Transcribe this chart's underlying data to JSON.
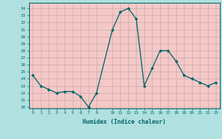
{
  "x": [
    0,
    1,
    2,
    3,
    4,
    5,
    6,
    7,
    8,
    10,
    11,
    12,
    13,
    14,
    15,
    16,
    17,
    18,
    19,
    20,
    21,
    22,
    23
  ],
  "y": [
    24.5,
    23.0,
    22.5,
    22.0,
    22.2,
    22.2,
    21.5,
    20.0,
    22.0,
    31.0,
    33.5,
    34.0,
    32.5,
    23.0,
    25.5,
    28.0,
    28.0,
    26.5,
    24.5,
    24.0,
    23.5,
    23.0,
    23.5
  ],
  "xlabel": "Humidex (Indice chaleur)",
  "xticks": [
    0,
    1,
    2,
    3,
    4,
    5,
    6,
    7,
    8,
    10,
    11,
    12,
    13,
    14,
    15,
    16,
    17,
    18,
    19,
    20,
    21,
    22,
    23
  ],
  "yticks": [
    20,
    21,
    22,
    23,
    24,
    25,
    26,
    27,
    28,
    29,
    30,
    31,
    32,
    33,
    34
  ],
  "ylim": [
    19.8,
    34.8
  ],
  "xlim": [
    -0.5,
    23.5
  ],
  "line_color": "#006666",
  "marker_color": "#006666",
  "bg_color": "#b0e0e0",
  "plot_bg_color": "#f5c8c8",
  "grid_color": "#c8a8a8"
}
